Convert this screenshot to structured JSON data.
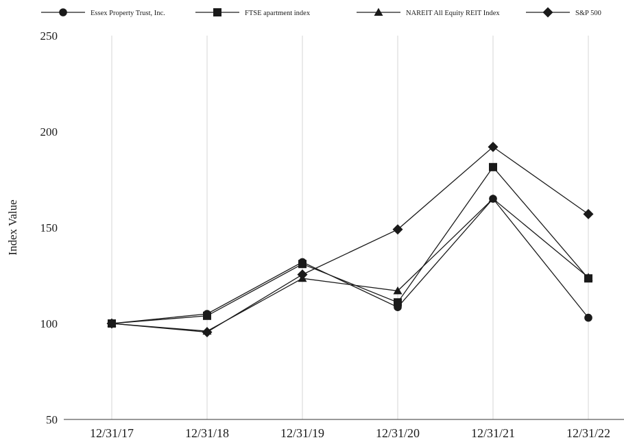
{
  "chart_data": {
    "type": "line",
    "title": "",
    "xlabel": "",
    "ylabel": "Index Value",
    "ylim": [
      50,
      250
    ],
    "yticks": [
      50,
      100,
      150,
      200,
      250
    ],
    "grid": {
      "vertical": true,
      "horizontal": false
    },
    "legend_position": "top",
    "categories": [
      "12/31/17",
      "12/31/18",
      "12/31/19",
      "12/31/20",
      "12/31/21",
      "12/31/22"
    ],
    "series": [
      {
        "name": "Essex Property Trust, Inc.",
        "marker": "circle",
        "values": [
          100,
          105,
          132,
          108.5,
          165,
          103
        ]
      },
      {
        "name": "FTSE apartment index",
        "marker": "square",
        "values": [
          100,
          104,
          131,
          111,
          181.5,
          123.5
        ]
      },
      {
        "name": "NAREIT All Equity REIT Index",
        "marker": "triangle",
        "values": [
          100,
          96,
          123.5,
          117,
          165,
          124
        ]
      },
      {
        "name": "S&P 500",
        "marker": "diamond",
        "values": [
          100,
          95.5,
          125.5,
          149,
          192,
          157
        ]
      }
    ]
  }
}
